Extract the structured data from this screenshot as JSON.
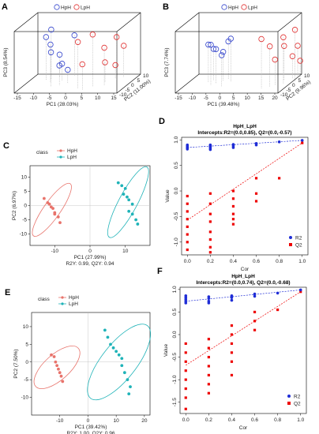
{
  "colors": {
    "hph": "#e8736b",
    "lph": "#1fb3b8",
    "blue_circle": "#3344cc",
    "red_circle": "#e03030",
    "r2": "#1f2dd6",
    "q2": "#ee0000"
  },
  "chart_data": [
    {
      "panel": "A",
      "type": "scatter",
      "legend": [
        "HpH",
        "LpH"
      ],
      "xlabel": "PC1 (28.03%)",
      "ylabel": "PC3 (8.54%)",
      "zlabel": "PC2 (11.00%)",
      "x_ticks": [
        "-15",
        "-10",
        "-5",
        "0",
        "5",
        "10",
        "15"
      ],
      "z_ticks": [
        "-10",
        "-5",
        "0",
        "5",
        "10"
      ],
      "series": [
        {
          "name": "HpH",
          "points": [
            [
              -11,
              4,
              2
            ],
            [
              -10,
              6,
              3
            ],
            [
              -9,
              2,
              1
            ],
            [
              -8,
              -3,
              4
            ],
            [
              -7,
              1,
              -2
            ],
            [
              -6,
              -5,
              2
            ],
            [
              -5,
              -4,
              -1
            ],
            [
              -4,
              3,
              5
            ],
            [
              -3,
              -6,
              0
            ]
          ]
        },
        {
          "name": "LpH",
          "points": [
            [
              2,
              5,
              -3
            ],
            [
              4,
              -2,
              -4
            ],
            [
              6,
              7,
              -2
            ],
            [
              8,
              -4,
              1
            ],
            [
              9,
              2,
              -1
            ],
            [
              10,
              -6,
              3
            ],
            [
              11,
              4,
              2
            ],
            [
              12,
              0,
              4
            ]
          ]
        }
      ]
    },
    {
      "panel": "B",
      "type": "scatter",
      "legend": [
        "HpH",
        "LpH"
      ],
      "xlabel": "PC1 (39.48%)",
      "ylabel": "PC3 (7.74%)",
      "zlabel": "PC2 (9.96%)",
      "x_ticks": [
        "-15",
        "-10",
        "-5",
        "0",
        "5",
        "10",
        "15",
        "20"
      ],
      "z_ticks": [
        "-10",
        "-5",
        "0",
        "5",
        "10"
      ],
      "series": [
        {
          "name": "HpH",
          "points": [
            [
              -10,
              2,
              1
            ],
            [
              -9,
              0,
              2
            ],
            [
              -8,
              3,
              -1
            ],
            [
              -7,
              1,
              0
            ],
            [
              -6,
              -1,
              2
            ],
            [
              -5,
              2,
              3
            ],
            [
              -4,
              0,
              -2
            ],
            [
              -3,
              4,
              1
            ]
          ]
        },
        {
          "name": "LpH",
          "points": [
            [
              9,
              6,
              -3
            ],
            [
              11,
              3,
              -2
            ],
            [
              12,
              -2,
              -1
            ],
            [
              13,
              1,
              2
            ],
            [
              14,
              5,
              0
            ],
            [
              15,
              -3,
              3
            ],
            [
              16,
              0,
              4
            ],
            [
              17,
              7,
              1
            ],
            [
              18,
              -4,
              2
            ]
          ]
        }
      ]
    },
    {
      "panel": "C",
      "type": "scatter",
      "legend_title": "class",
      "legend": [
        "HpH",
        "LpH"
      ],
      "xlabel": "PC1 (27.99%)",
      "ylabel": "PC2 (6.97%)",
      "caption": "R2Y: 0.99, Q2Y: 0.94",
      "xlim": [
        -17,
        17
      ],
      "ylim": [
        -14,
        14
      ],
      "x_ticks": [
        -10,
        0,
        10
      ],
      "y_ticks": [
        -10,
        -5,
        0,
        5,
        10
      ],
      "series": [
        {
          "name": "HpH",
          "points": [
            [
              -13,
              2.5
            ],
            [
              -12,
              1
            ],
            [
              -11.5,
              0.5
            ],
            [
              -11,
              -0.5
            ],
            [
              -10.5,
              -1
            ],
            [
              -10,
              -2.5
            ],
            [
              -10,
              -3
            ],
            [
              -9,
              -4
            ],
            [
              -8.5,
              -6
            ]
          ]
        },
        {
          "name": "LpH",
          "points": [
            [
              8,
              8
            ],
            [
              9,
              7
            ],
            [
              10,
              6
            ],
            [
              9.5,
              4
            ],
            [
              10.5,
              3
            ],
            [
              11,
              2
            ],
            [
              12,
              0.5
            ],
            [
              11,
              -2
            ],
            [
              12,
              -3
            ],
            [
              13,
              -5
            ],
            [
              13.5,
              -6.5
            ]
          ]
        }
      ],
      "ellipses": [
        {
          "name": "HpH",
          "center": [
            -10.8,
            -1.5
          ],
          "rx": 10.0,
          "ry": 2.6,
          "angle": -55
        },
        {
          "name": "LpH",
          "center": [
            10.8,
            1.2
          ],
          "rx": 12.5,
          "ry": 2.9,
          "angle": -62
        }
      ]
    },
    {
      "panel": "D",
      "type": "scatter",
      "title": "HpH_LpH",
      "subtitle": "Intercepts:R2=(0.0,0.85), Q2=(0.0,-0.57)",
      "xlabel": "Cor",
      "ylabel": "Value",
      "legend": [
        "R2",
        "Q2"
      ],
      "xlim": [
        -0.05,
        1.05
      ],
      "ylim": [
        -1.25,
        1.05
      ],
      "x_ticks": [
        0.0,
        0.2,
        0.4,
        0.6,
        0.8,
        1.0
      ],
      "y_ticks": [
        -1.0,
        -0.5,
        0.0,
        0.5,
        1.0
      ],
      "r2_line": [
        0.85,
        0.99
      ],
      "q2_line": [
        -0.57,
        0.94
      ],
      "series": [
        {
          "name": "R2",
          "points": [
            [
              0,
              0.86
            ],
            [
              0,
              0.84
            ],
            [
              0,
              0.88
            ],
            [
              0,
              0.82
            ],
            [
              0,
              0.9
            ],
            [
              0.2,
              0.87
            ],
            [
              0.2,
              0.84
            ],
            [
              0.2,
              0.9
            ],
            [
              0.2,
              0.81
            ],
            [
              0.2,
              0.88
            ],
            [
              0.4,
              0.88
            ],
            [
              0.4,
              0.91
            ],
            [
              0.4,
              0.85
            ],
            [
              0.6,
              0.9
            ],
            [
              0.6,
              0.93
            ],
            [
              0.8,
              0.96
            ],
            [
              1.0,
              0.99
            ]
          ]
        },
        {
          "name": "Q2",
          "points": [
            [
              0,
              -0.1
            ],
            [
              0,
              -0.25
            ],
            [
              0,
              -0.4
            ],
            [
              0,
              -0.55
            ],
            [
              0,
              -0.7
            ],
            [
              0,
              -0.85
            ],
            [
              0,
              -1.0
            ],
            [
              0,
              -1.15
            ],
            [
              0.2,
              -0.05
            ],
            [
              0.2,
              -0.25
            ],
            [
              0.2,
              -0.45
            ],
            [
              0.2,
              -0.6
            ],
            [
              0.2,
              -0.8
            ],
            [
              0.2,
              -0.95
            ],
            [
              0.2,
              -1.1
            ],
            [
              0.2,
              -1.2
            ],
            [
              0.4,
              0.0
            ],
            [
              0.4,
              -0.15
            ],
            [
              0.4,
              -0.3
            ],
            [
              0.4,
              -0.45
            ],
            [
              0.4,
              -0.55
            ],
            [
              0.4,
              -0.65
            ],
            [
              0.6,
              0.25
            ],
            [
              0.6,
              -0.05
            ],
            [
              0.6,
              -0.2
            ],
            [
              0.8,
              0.25
            ],
            [
              1.0,
              0.94
            ]
          ]
        }
      ]
    },
    {
      "panel": "E",
      "type": "scatter",
      "legend_title": "class",
      "legend": [
        "HpH",
        "LpH"
      ],
      "xlabel": "PC1 (39.42%)",
      "ylabel": "PC2 (7.50%)",
      "caption": "R2Y: 1.00, Q2Y: 0.96",
      "xlim": [
        -20,
        22
      ],
      "ylim": [
        -15,
        14
      ],
      "x_ticks": [
        -10,
        0,
        10,
        20
      ],
      "y_ticks": [
        -10,
        -5,
        0,
        5,
        10
      ],
      "series": [
        {
          "name": "HpH",
          "points": [
            [
              -13,
              2
            ],
            [
              -12,
              1.5
            ],
            [
              -11.5,
              0
            ],
            [
              -11,
              -1
            ],
            [
              -10.5,
              -2
            ],
            [
              -10,
              -3
            ],
            [
              -9.5,
              -4
            ],
            [
              -9,
              -5.5
            ]
          ]
        },
        {
          "name": "LpH",
          "points": [
            [
              6,
              9
            ],
            [
              7,
              7
            ],
            [
              8,
              5
            ],
            [
              9,
              4
            ],
            [
              10,
              3
            ],
            [
              11,
              2
            ],
            [
              12,
              1
            ],
            [
              12,
              -1
            ],
            [
              13,
              -3
            ],
            [
              14,
              -5
            ],
            [
              15,
              -7
            ],
            [
              14.5,
              -9
            ]
          ]
        }
      ],
      "ellipses": [
        {
          "name": "HpH",
          "center": [
            -11,
            -1.5
          ],
          "rx": 9.0,
          "ry": 4.0,
          "angle": -42
        },
        {
          "name": "LpH",
          "center": [
            11,
            0
          ],
          "rx": 14.5,
          "ry": 5.5,
          "angle": -52
        }
      ]
    },
    {
      "panel": "F",
      "type": "scatter",
      "title": "HpH_LpH",
      "subtitle": "Intercepts:R2=(0.0,0.74), Q2=(0.0,-0.68)",
      "xlabel": "Cor",
      "ylabel": "Value",
      "legend": [
        "R2",
        "Q2"
      ],
      "xlim": [
        -0.05,
        1.05
      ],
      "ylim": [
        -1.75,
        1.05
      ],
      "x_ticks": [
        0.0,
        0.2,
        0.4,
        0.6,
        0.8,
        1.0
      ],
      "y_ticks": [
        -1.5,
        -1.0,
        -0.5,
        0.0,
        0.5,
        1.0
      ],
      "r2_line": [
        0.74,
        0.99
      ],
      "q2_line": [
        -0.68,
        0.95
      ],
      "series": [
        {
          "name": "R2",
          "points": [
            [
              0,
              0.78
            ],
            [
              0,
              0.74
            ],
            [
              0,
              0.82
            ],
            [
              0,
              0.7
            ],
            [
              0,
              0.86
            ],
            [
              0.2,
              0.8
            ],
            [
              0.2,
              0.74
            ],
            [
              0.2,
              0.84
            ],
            [
              0.2,
              0.7
            ],
            [
              0.4,
              0.82
            ],
            [
              0.4,
              0.86
            ],
            [
              0.4,
              0.76
            ],
            [
              0.6,
              0.85
            ],
            [
              0.6,
              0.9
            ],
            [
              0.8,
              0.92
            ],
            [
              1.0,
              0.99
            ]
          ]
        },
        {
          "name": "Q2",
          "points": [
            [
              0,
              -0.2
            ],
            [
              0,
              -0.4
            ],
            [
              0,
              -0.6
            ],
            [
              0,
              -0.8
            ],
            [
              0,
              -1.0
            ],
            [
              0,
              -1.2
            ],
            [
              0,
              -1.4
            ],
            [
              0,
              -1.65
            ],
            [
              0.2,
              -0.1
            ],
            [
              0.2,
              -0.3
            ],
            [
              0.2,
              -0.5
            ],
            [
              0.2,
              -0.7
            ],
            [
              0.2,
              -0.9
            ],
            [
              0.2,
              -1.1
            ],
            [
              0.2,
              -1.3
            ],
            [
              0.4,
              0.2
            ],
            [
              0.4,
              0.0
            ],
            [
              0.4,
              -0.2
            ],
            [
              0.4,
              -0.4
            ],
            [
              0.4,
              -0.6
            ],
            [
              0.4,
              -0.9
            ],
            [
              0.6,
              0.5
            ],
            [
              0.6,
              0.3
            ],
            [
              0.6,
              0.1
            ],
            [
              0.8,
              0.55
            ],
            [
              1.0,
              0.95
            ]
          ]
        }
      ]
    }
  ]
}
